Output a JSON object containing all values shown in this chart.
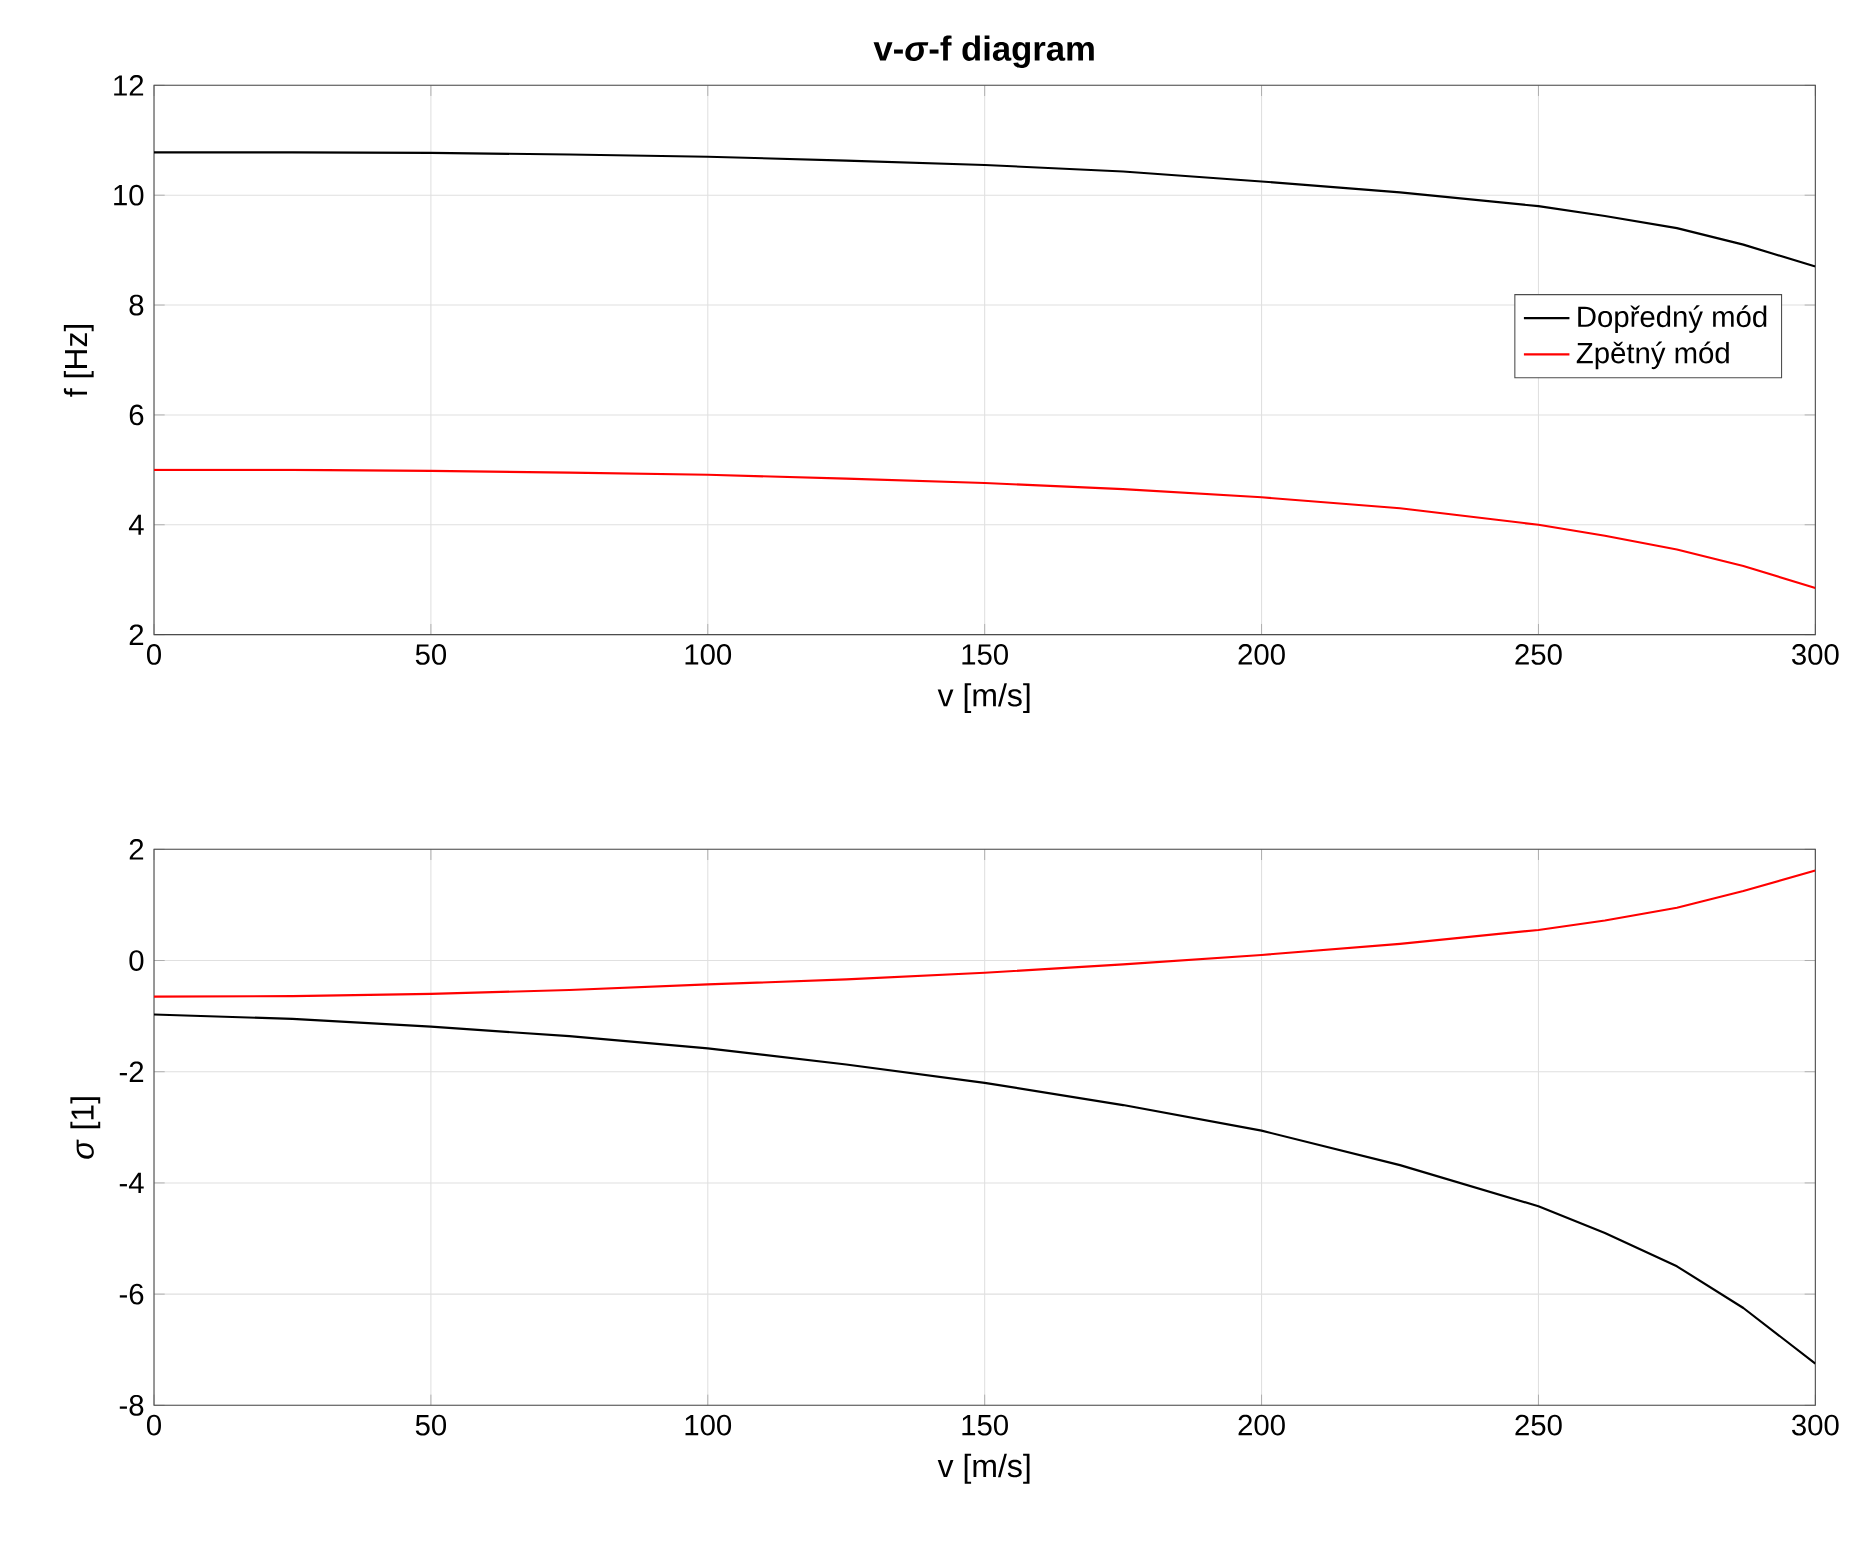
{
  "chart_data": [
    {
      "type": "line",
      "title": "**v-*σ*-f diagram**",
      "xlabel": "v [m/s]",
      "ylabel": "f [Hz]",
      "x": [
        0,
        25,
        50,
        75,
        100,
        125,
        150,
        175,
        200,
        225,
        250,
        262,
        275,
        287,
        300
      ],
      "xlim": [
        0,
        300
      ],
      "ylim": [
        2,
        12
      ],
      "xticks": [
        0,
        50,
        100,
        150,
        200,
        250,
        300
      ],
      "yticks": [
        2,
        4,
        6,
        8,
        10,
        12
      ],
      "grid": true,
      "legend": "right",
      "series": [
        {
          "name": "Dopředný mód",
          "color": "#000000",
          "values": [
            10.78,
            10.78,
            10.77,
            10.74,
            10.7,
            10.63,
            10.55,
            10.43,
            10.25,
            10.05,
            9.8,
            9.62,
            9.4,
            9.1,
            8.7
          ]
        },
        {
          "name": "Zpětný mód",
          "color": "#ff0000",
          "values": [
            5.0,
            5.0,
            4.98,
            4.95,
            4.91,
            4.84,
            4.76,
            4.65,
            4.5,
            4.3,
            4.0,
            3.8,
            3.55,
            3.25,
            2.85
          ]
        }
      ]
    },
    {
      "type": "line",
      "xlabel": "v [m/s]",
      "ylabel": "*σ* [1]",
      "x": [
        0,
        25,
        50,
        75,
        100,
        125,
        150,
        175,
        200,
        225,
        250,
        262,
        275,
        287,
        300
      ],
      "xlim": [
        0,
        300
      ],
      "ylim": [
        -8,
        2
      ],
      "xticks": [
        0,
        50,
        100,
        150,
        200,
        250,
        300
      ],
      "yticks": [
        -8,
        -6,
        -4,
        -2,
        0,
        2
      ],
      "grid": true,
      "series": [
        {
          "color": "#000000",
          "values": [
            -0.97,
            -1.05,
            -1.19,
            -1.36,
            -1.58,
            -1.87,
            -2.2,
            -2.6,
            -3.06,
            -3.68,
            -4.42,
            -4.9,
            -5.5,
            -6.25,
            -7.25
          ]
        },
        {
          "color": "#ff0000",
          "values": [
            -0.65,
            -0.64,
            -0.6,
            -0.53,
            -0.43,
            -0.34,
            -0.22,
            -0.07,
            0.1,
            0.3,
            0.55,
            0.72,
            0.95,
            1.25,
            1.62
          ]
        }
      ]
    }
  ]
}
